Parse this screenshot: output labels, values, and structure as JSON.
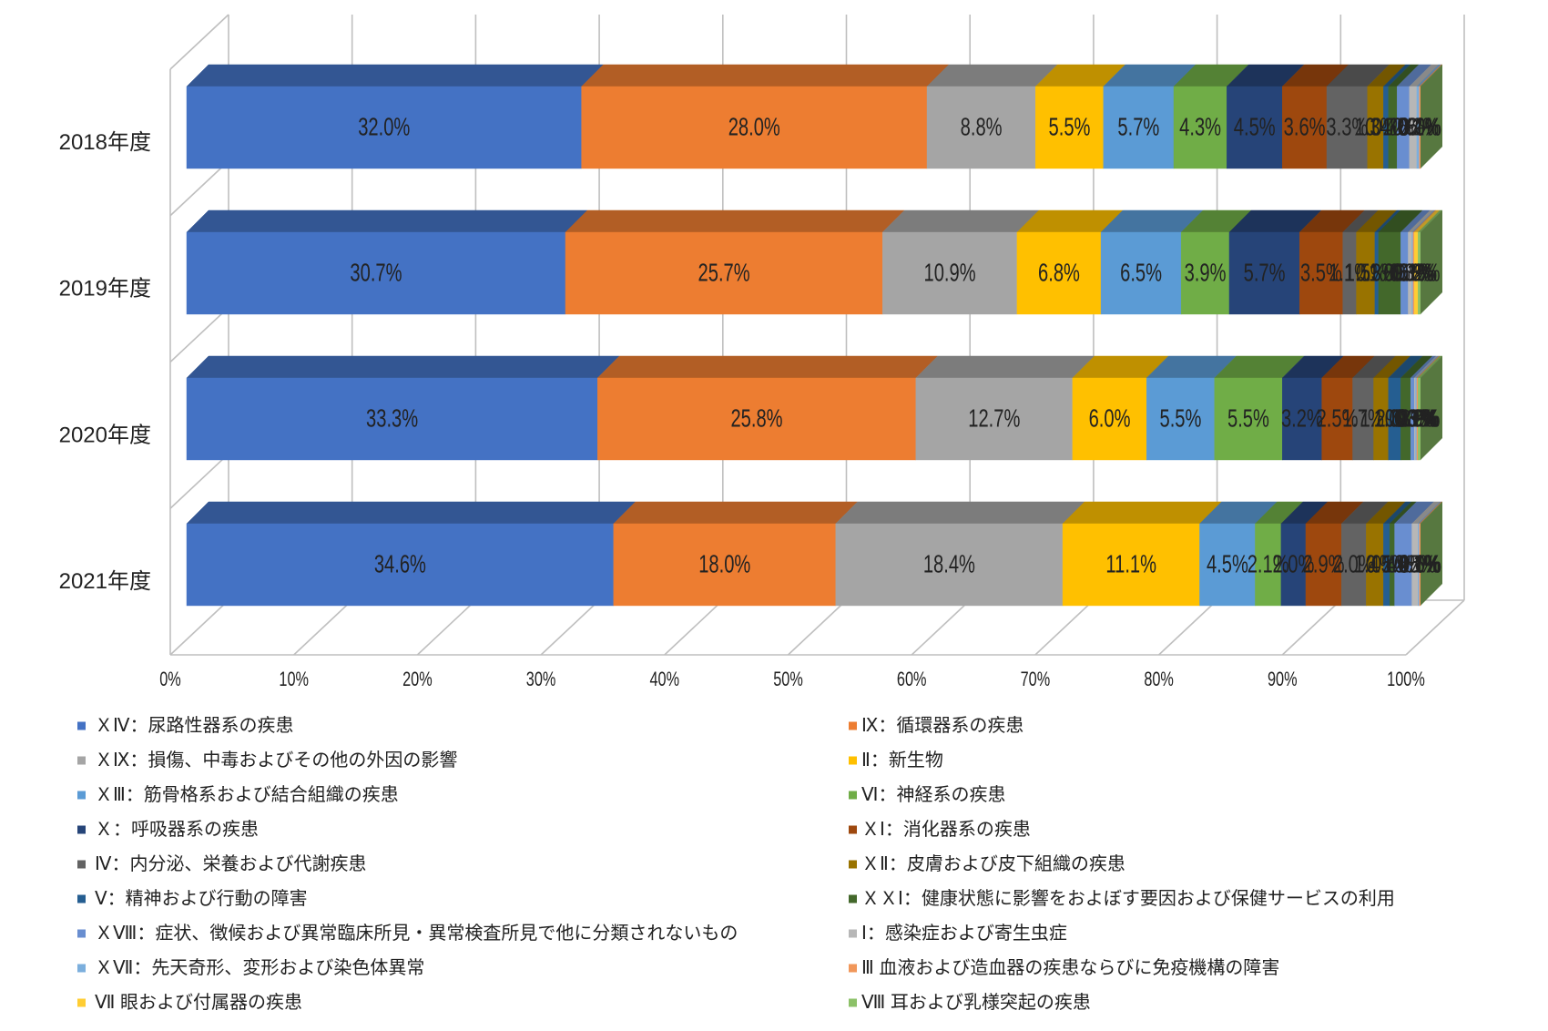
{
  "chart_data": {
    "type": "bar",
    "orientation": "horizontal",
    "stacking": "percent",
    "style": "3d",
    "grid": true,
    "legend_position": "bottom",
    "data_labels": true,
    "xlim": [
      0,
      100
    ],
    "categories": [
      "2018年度",
      "2019年度",
      "2020年度",
      "2021年度"
    ],
    "x_ticks": [
      "0%",
      "10%",
      "20%",
      "30%",
      "40%",
      "50%",
      "60%",
      "70%",
      "80%",
      "90%",
      "100%"
    ],
    "series": [
      {
        "name": "ＸⅣ：尿路性器系の疾患",
        "color": "#4472C4",
        "values": [
          32.0,
          30.7,
          33.3,
          34.6
        ]
      },
      {
        "name": "Ⅸ：循環器系の疾患",
        "color": "#ED7D31",
        "values": [
          28.0,
          25.7,
          25.8,
          18.0
        ]
      },
      {
        "name": "ＸⅨ：損傷、中毒およびその他の外因の影響",
        "color": "#A5A5A5",
        "values": [
          8.8,
          10.9,
          12.7,
          18.4
        ]
      },
      {
        "name": "Ⅱ：新生物",
        "color": "#FFC000",
        "values": [
          5.5,
          6.8,
          6.0,
          11.1
        ]
      },
      {
        "name": "ＸⅢ：筋骨格系および結合組織の疾患",
        "color": "#5B9BD5",
        "values": [
          5.7,
          6.5,
          5.5,
          4.5
        ]
      },
      {
        "name": "Ⅵ：神経系の疾患",
        "color": "#70AD47",
        "values": [
          4.3,
          3.9,
          5.5,
          2.1
        ]
      },
      {
        "name": "Ｘ：呼吸器系の疾患",
        "color": "#264478",
        "values": [
          4.5,
          5.7,
          3.2,
          2.0
        ]
      },
      {
        "name": "ＸⅠ：消化器系の疾患",
        "color": "#9E480E",
        "values": [
          3.6,
          3.5,
          2.5,
          2.9
        ]
      },
      {
        "name": "Ⅳ：内分泌、栄養および代謝疾患",
        "color": "#636363",
        "values": [
          3.3,
          1.1,
          1.7,
          2.0
        ]
      },
      {
        "name": "ＸⅡ：皮膚および皮下組織の疾患",
        "color": "#997300",
        "values": [
          1.3,
          1.5,
          1.2,
          1.4
        ]
      },
      {
        "name": "Ⅴ：精神および行動の障害",
        "color": "#255E91",
        "values": [
          0.4,
          0.3,
          1.0,
          0.5
        ]
      },
      {
        "name": "ＸＸⅠ：健康状態に影響をおよぼす要因および保健サービスの利用",
        "color": "#43682B",
        "values": [
          0.7,
          1.8,
          0.8,
          0.4
        ]
      },
      {
        "name": "ＸⅧ：症状、徴候および異常臨床所見・異常検査所見で他に分類されないもの",
        "color": "#698ED0",
        "values": [
          1.0,
          0.6,
          0.3,
          1.4
        ]
      },
      {
        "name": "Ⅰ：感染症および寄生虫症",
        "color": "#B7B7B7",
        "values": [
          0.6,
          0.3,
          0.1,
          0.5
        ]
      },
      {
        "name": "ＸⅦ：先天奇形、変形および染色体異常",
        "color": "#7CAFDD",
        "values": [
          0.2,
          0.1,
          0.1,
          0.1
        ]
      },
      {
        "name": "Ⅲ 血液および造血器の疾患ならびに免疫機構の障害",
        "color": "#F1975A",
        "values": [
          0.1,
          0.1,
          0.1,
          0.1
        ]
      },
      {
        "name": "Ⅶ 眼および付属器の疾患",
        "color": "#FFCD33",
        "values": [
          0.0,
          0.3,
          0.0,
          0.0
        ]
      },
      {
        "name": "Ⅷ 耳および乳様突起の疾患",
        "color": "#8CC168",
        "values": [
          0.0,
          0.2,
          0.2,
          0.0
        ]
      }
    ]
  }
}
